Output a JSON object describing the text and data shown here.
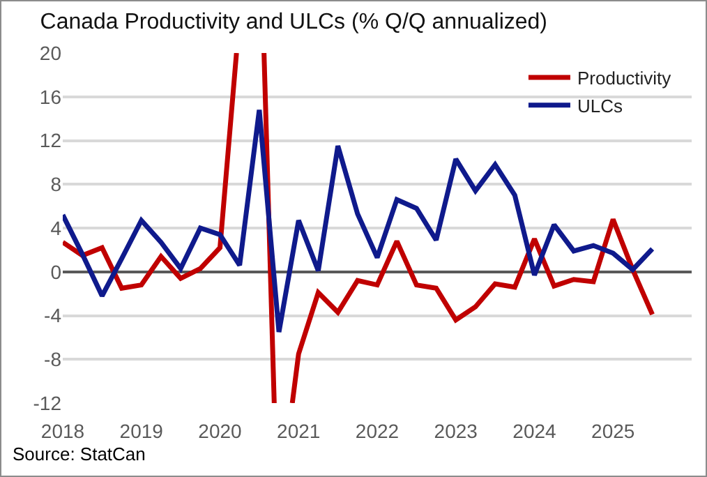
{
  "chart_data": {
    "type": "line",
    "title": "Canada Productivity and ULCs (% Q/Q annualized)",
    "x": [
      2018,
      2018.25,
      2018.5,
      2018.75,
      2019,
      2019.25,
      2019.5,
      2019.75,
      2020,
      2020.25,
      2020.5,
      2020.75,
      2021,
      2021.25,
      2021.5,
      2021.75,
      2022,
      2022.25,
      2022.5,
      2022.75,
      2023,
      2023.25,
      2023.5,
      2023.75,
      2024,
      2024.25,
      2024.5,
      2024.75,
      2025,
      2025.25,
      2025.5
    ],
    "series": [
      {
        "name": "Productivity",
        "color": "#c00000",
        "x": [
          2018,
          2018.25,
          2018.5,
          2018.75,
          2019,
          2019.25,
          2019.5,
          2019.75,
          2020,
          2020.21,
          2020.4,
          2020.56,
          2020.69,
          2020.8,
          2020.92,
          2021,
          2021.25,
          2021.5,
          2021.75,
          2022,
          2022.25,
          2022.5,
          2022.75,
          2023,
          2023.25,
          2023.5,
          2023.75,
          2024,
          2024.25,
          2024.5,
          2024.75,
          2025,
          2025.25,
          2025.5
        ],
        "values": [
          2.7,
          1.5,
          2.2,
          -1.5,
          -1.2,
          1.4,
          -0.6,
          0.3,
          2.2,
          20,
          null,
          20,
          -12,
          null,
          -12,
          -7.5,
          -1.9,
          -3.7,
          -0.8,
          -1.2,
          2.8,
          -1.2,
          -1.5,
          -4.4,
          -3.2,
          -1.1,
          -1.4,
          3.0,
          -1.3,
          -0.7,
          -0.9,
          4.8,
          0.2,
          -3.9
        ]
      },
      {
        "name": "ULCs",
        "color": "#0f1a8c",
        "values": [
          5.2,
          1.6,
          -2.2,
          1.2,
          4.7,
          2.7,
          0.3,
          4.0,
          3.4,
          0.6,
          14.8,
          -5.5,
          4.7,
          0.1,
          11.5,
          5.3,
          1.3,
          6.6,
          5.8,
          2.9,
          10.3,
          7.4,
          9.8,
          7.0,
          -0.3,
          4.3,
          1.9,
          2.4,
          1.7,
          0.2,
          2.1
        ]
      }
    ],
    "xlim": [
      2018,
      2026
    ],
    "xticks": [
      {
        "value": 2018,
        "label": "2018"
      },
      {
        "value": 2019,
        "label": "2019"
      },
      {
        "value": 2020,
        "label": "2020"
      },
      {
        "value": 2021,
        "label": "2021"
      },
      {
        "value": 2022,
        "label": "2022"
      },
      {
        "value": 2023,
        "label": "2023"
      },
      {
        "value": 2024,
        "label": "2024"
      },
      {
        "value": 2025,
        "label": "2025"
      }
    ],
    "ylim": [
      -12,
      20
    ],
    "yticks": [
      -12,
      -8,
      -4,
      0,
      4,
      8,
      12,
      16,
      20
    ],
    "grid": "y",
    "legend": "top right",
    "marker": "none",
    "line_style": "solid",
    "annotations": [
      "Source: StatCan"
    ]
  }
}
